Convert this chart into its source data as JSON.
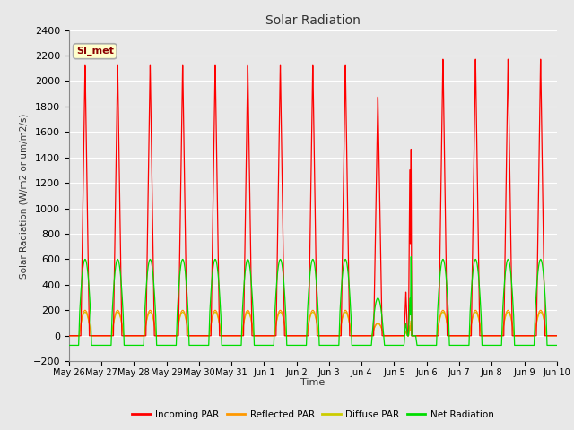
{
  "title": "Solar Radiation",
  "ylabel": "Solar Radiation (W/m2 or um/m2/s)",
  "xlabel": "Time",
  "ylim": [
    -200,
    2400
  ],
  "yticks": [
    -200,
    0,
    200,
    400,
    600,
    800,
    1000,
    1200,
    1400,
    1600,
    1800,
    2000,
    2200,
    2400
  ],
  "annotation": "SI_met",
  "annotation_bg": "#ffffcc",
  "annotation_border": "#aaaaaa",
  "bg_color": "#e8e8e8",
  "plot_bg": "#e8e8e8",
  "grid_color": "#ffffff",
  "colors": {
    "incoming": "#ff0000",
    "reflected": "#ff9900",
    "diffuse": "#cccc00",
    "net": "#00dd00"
  },
  "legend_labels": [
    "Incoming PAR",
    "Reflected PAR",
    "Diffuse PAR",
    "Net Radiation"
  ],
  "x_tick_labels": [
    "May 26",
    "May 27",
    "May 28",
    "May 29",
    "May 30",
    "May 31",
    "Jun 1",
    "Jun 2",
    "Jun 3",
    "Jun 4",
    "Jun 5",
    "Jun 6",
    "Jun 7",
    "Jun 8",
    "Jun 9",
    "Jun 10"
  ],
  "n_days": 15,
  "ppd": 288
}
